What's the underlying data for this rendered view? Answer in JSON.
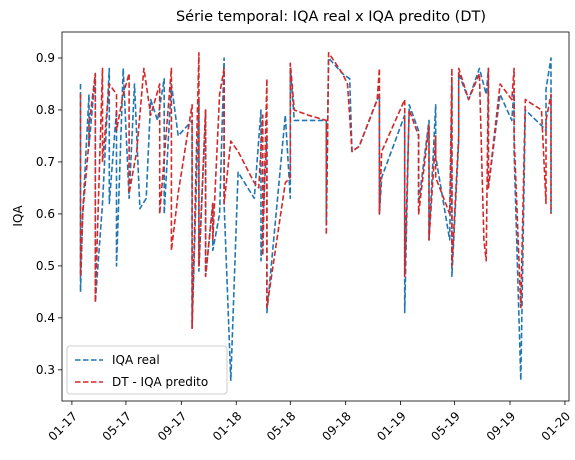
{
  "chart_data": {
    "type": "line",
    "title": "Série temporal: IQA real x IQA predito (DT)",
    "xlabel": "",
    "ylabel": "IQA",
    "x_tick_labels": [
      "01-17",
      "05-17",
      "09-17",
      "01-18",
      "05-18",
      "09-18",
      "01-19",
      "05-19",
      "09-19",
      "01-20"
    ],
    "x_tick_dates": [
      "2017-01-01",
      "2017-05-01",
      "2017-09-01",
      "2018-01-01",
      "2018-05-01",
      "2018-09-01",
      "2019-01-01",
      "2019-05-01",
      "2019-09-01",
      "2020-01-01"
    ],
    "xlim": [
      "2016-12-10",
      "2020-01-10"
    ],
    "ylim": [
      0.24,
      0.95
    ],
    "y_ticks": [
      0.3,
      0.4,
      0.5,
      0.6,
      0.7,
      0.8,
      0.9
    ],
    "legend": "lower-left",
    "grid": false,
    "series": [
      {
        "name": "IQA real",
        "color": "#1f77b4",
        "style": "dashed",
        "points": [
          [
            "2017-01-20",
            0.85
          ],
          [
            "2017-01-20",
            0.45
          ],
          [
            "2017-01-25",
            0.6
          ],
          [
            "2017-02-08",
            0.83
          ],
          [
            "2017-02-08",
            0.73
          ],
          [
            "2017-02-22",
            0.87
          ],
          [
            "2017-02-22",
            0.43
          ],
          [
            "2017-03-10",
            0.62
          ],
          [
            "2017-03-25",
            0.88
          ],
          [
            "2017-03-25",
            0.62
          ],
          [
            "2017-04-10",
            0.8
          ],
          [
            "2017-04-10",
            0.5
          ],
          [
            "2017-04-25",
            0.88
          ],
          [
            "2017-05-08",
            0.63
          ],
          [
            "2017-05-20",
            0.85
          ],
          [
            "2017-06-01",
            0.61
          ],
          [
            "2017-06-15",
            0.63
          ],
          [
            "2017-06-25",
            0.82
          ],
          [
            "2017-07-10",
            0.78
          ],
          [
            "2017-07-25",
            0.86
          ],
          [
            "2017-07-25",
            0.6
          ],
          [
            "2017-08-10",
            0.85
          ],
          [
            "2017-08-25",
            0.75
          ],
          [
            "2017-09-25",
            0.78
          ],
          [
            "2017-09-25",
            0.38
          ],
          [
            "2017-10-10",
            0.82
          ],
          [
            "2017-10-10",
            0.49
          ],
          [
            "2017-10-25",
            0.8
          ],
          [
            "2017-10-25",
            0.48
          ],
          [
            "2017-11-10",
            0.62
          ],
          [
            "2017-11-10",
            0.53
          ],
          [
            "2017-11-25",
            0.6
          ],
          [
            "2017-12-05",
            0.9
          ],
          [
            "2017-12-05",
            0.62
          ],
          [
            "2017-12-20",
            0.28
          ],
          [
            "2018-01-05",
            0.68
          ],
          [
            "2018-02-10",
            0.63
          ],
          [
            "2018-02-25",
            0.8
          ],
          [
            "2018-02-25",
            0.51
          ],
          [
            "2018-03-10",
            0.75
          ],
          [
            "2018-03-10",
            0.41
          ],
          [
            "2018-04-20",
            0.79
          ],
          [
            "2018-05-01",
            0.63
          ],
          [
            "2018-05-01",
            0.88
          ],
          [
            "2018-05-10",
            0.78
          ],
          [
            "2018-06-10",
            0.78
          ],
          [
            "2018-07-20",
            0.78
          ],
          [
            "2018-07-20",
            0.58
          ],
          [
            "2018-07-25",
            0.9
          ],
          [
            "2018-08-25",
            0.87
          ],
          [
            "2018-09-10",
            0.86
          ],
          [
            "2018-09-15",
            0.72
          ],
          [
            "2018-10-01",
            0.73
          ],
          [
            "2018-11-10",
            0.82
          ],
          [
            "2018-11-15",
            0.83
          ],
          [
            "2018-11-15",
            0.6
          ],
          [
            "2018-11-20",
            0.67
          ],
          [
            "2019-01-10",
            0.79
          ],
          [
            "2019-01-10",
            0.41
          ],
          [
            "2019-01-20",
            0.81
          ],
          [
            "2019-02-10",
            0.76
          ],
          [
            "2019-02-10",
            0.62
          ],
          [
            "2019-03-05",
            0.78
          ],
          [
            "2019-03-05",
            0.55
          ],
          [
            "2019-03-20",
            0.81
          ],
          [
            "2019-03-20",
            0.71
          ],
          [
            "2019-04-20",
            0.55
          ],
          [
            "2019-04-25",
            0.85
          ],
          [
            "2019-04-25",
            0.48
          ],
          [
            "2019-05-10",
            0.74
          ],
          [
            "2019-05-10",
            0.87
          ],
          [
            "2019-06-01",
            0.82
          ],
          [
            "2019-06-25",
            0.88
          ],
          [
            "2019-07-10",
            0.83
          ],
          [
            "2019-07-15",
            0.88
          ],
          [
            "2019-07-15",
            0.65
          ],
          [
            "2019-08-10",
            0.83
          ],
          [
            "2019-09-05",
            0.78
          ],
          [
            "2019-09-10",
            0.84
          ],
          [
            "2019-09-10",
            0.72
          ],
          [
            "2019-09-25",
            0.28
          ],
          [
            "2019-10-05",
            0.8
          ],
          [
            "2019-11-10",
            0.77
          ],
          [
            "2019-11-20",
            0.76
          ],
          [
            "2019-11-20",
            0.84
          ],
          [
            "2019-12-01",
            0.9
          ],
          [
            "2019-12-01",
            0.6
          ]
        ]
      },
      {
        "name": "DT - IQA predito",
        "color": "#d62728",
        "style": "dashed",
        "points": [
          [
            "2017-01-20",
            0.83
          ],
          [
            "2017-01-20",
            0.48
          ],
          [
            "2017-01-25",
            0.6
          ],
          [
            "2017-02-08",
            0.74
          ],
          [
            "2017-02-08",
            0.77
          ],
          [
            "2017-02-22",
            0.87
          ],
          [
            "2017-02-22",
            0.43
          ],
          [
            "2017-03-10",
            0.88
          ],
          [
            "2017-03-10",
            0.7
          ],
          [
            "2017-03-25",
            0.85
          ],
          [
            "2017-04-10",
            0.83
          ],
          [
            "2017-04-10",
            0.76
          ],
          [
            "2017-04-25",
            0.83
          ],
          [
            "2017-05-08",
            0.87
          ],
          [
            "2017-05-08",
            0.64
          ],
          [
            "2017-05-25",
            0.72
          ],
          [
            "2017-06-10",
            0.88
          ],
          [
            "2017-06-25",
            0.79
          ],
          [
            "2017-07-15",
            0.85
          ],
          [
            "2017-07-15",
            0.6
          ],
          [
            "2017-08-10",
            0.88
          ],
          [
            "2017-08-10",
            0.53
          ],
          [
            "2017-08-25",
            0.64
          ],
          [
            "2017-09-25",
            0.81
          ],
          [
            "2017-09-25",
            0.38
          ],
          [
            "2017-10-10",
            0.91
          ],
          [
            "2017-10-10",
            0.5
          ],
          [
            "2017-10-25",
            0.8
          ],
          [
            "2017-10-25",
            0.48
          ],
          [
            "2017-11-10",
            0.62
          ],
          [
            "2017-11-10",
            0.55
          ],
          [
            "2017-11-25",
            0.83
          ],
          [
            "2017-12-05",
            0.88
          ],
          [
            "2017-12-05",
            0.62
          ],
          [
            "2017-12-20",
            0.74
          ],
          [
            "2018-01-05",
            0.72
          ],
          [
            "2018-02-10",
            0.66
          ],
          [
            "2018-02-20",
            0.65
          ],
          [
            "2018-03-01",
            0.79
          ],
          [
            "2018-03-01",
            0.52
          ],
          [
            "2018-03-10",
            0.86
          ],
          [
            "2018-03-10",
            0.42
          ],
          [
            "2018-04-20",
            0.66
          ],
          [
            "2018-05-01",
            0.67
          ],
          [
            "2018-05-01",
            0.89
          ],
          [
            "2018-05-10",
            0.8
          ],
          [
            "2018-06-10",
            0.79
          ],
          [
            "2018-07-20",
            0.78
          ],
          [
            "2018-07-20",
            0.56
          ],
          [
            "2018-07-25",
            0.91
          ],
          [
            "2018-08-25",
            0.87
          ],
          [
            "2018-09-05",
            0.85
          ],
          [
            "2018-09-15",
            0.72
          ],
          [
            "2018-10-01",
            0.73
          ],
          [
            "2018-11-10",
            0.82
          ],
          [
            "2018-11-15",
            0.88
          ],
          [
            "2018-11-15",
            0.6
          ],
          [
            "2018-11-20",
            0.72
          ],
          [
            "2019-01-10",
            0.82
          ],
          [
            "2019-01-10",
            0.48
          ],
          [
            "2019-01-20",
            0.8
          ],
          [
            "2019-02-10",
            0.75
          ],
          [
            "2019-02-10",
            0.6
          ],
          [
            "2019-03-05",
            0.77
          ],
          [
            "2019-03-05",
            0.55
          ],
          [
            "2019-03-20",
            0.75
          ],
          [
            "2019-03-20",
            0.67
          ],
          [
            "2019-04-20",
            0.6
          ],
          [
            "2019-04-25",
            0.88
          ],
          [
            "2019-04-25",
            0.5
          ],
          [
            "2019-05-10",
            0.75
          ],
          [
            "2019-05-10",
            0.88
          ],
          [
            "2019-06-01",
            0.82
          ],
          [
            "2019-06-25",
            0.87
          ],
          [
            "2019-07-05",
            0.55
          ],
          [
            "2019-07-10",
            0.51
          ],
          [
            "2019-07-15",
            0.88
          ],
          [
            "2019-07-15",
            0.65
          ],
          [
            "2019-08-10",
            0.85
          ],
          [
            "2019-09-05",
            0.82
          ],
          [
            "2019-09-10",
            0.88
          ],
          [
            "2019-09-10",
            0.75
          ],
          [
            "2019-09-25",
            0.42
          ],
          [
            "2019-10-05",
            0.82
          ],
          [
            "2019-11-10",
            0.8
          ],
          [
            "2019-11-20",
            0.62
          ],
          [
            "2019-11-20",
            0.78
          ],
          [
            "2019-12-01",
            0.83
          ],
          [
            "2019-12-01",
            0.6
          ]
        ]
      }
    ]
  }
}
